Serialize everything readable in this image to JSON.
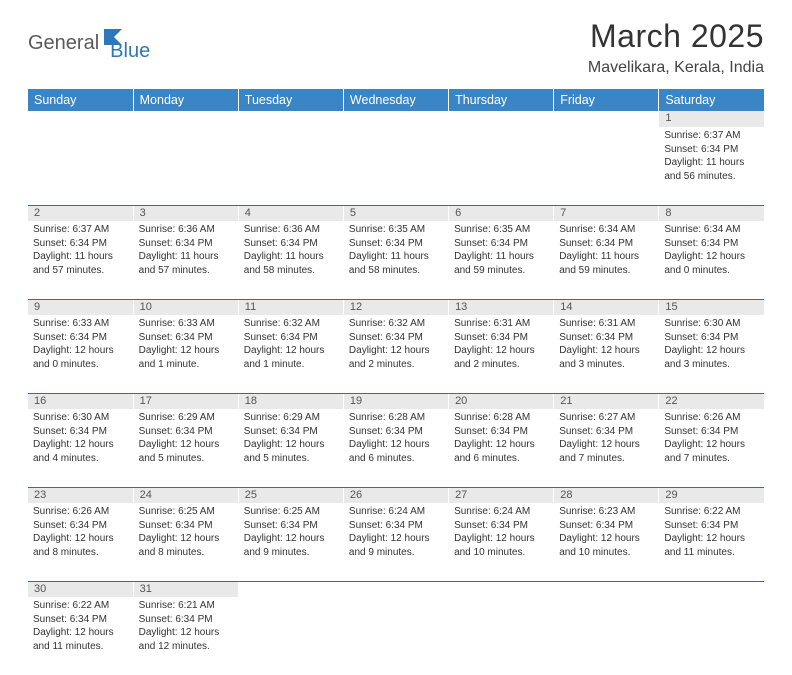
{
  "branding": {
    "logo_part1": "General",
    "logo_part2": "Blue",
    "logo_color1": "#5a5a5a",
    "logo_color2": "#2f78b8",
    "flag_color": "#2f78b8"
  },
  "header": {
    "title": "March 2025",
    "location": "Mavelikara, Kerala, India"
  },
  "theme": {
    "header_bg": "#3a85c6",
    "header_text": "#ffffff",
    "daynum_bg": "#e9e9e9",
    "daynum_text": "#555555",
    "cell_border": "#2f6fa8",
    "body_text": "#333333",
    "title_fontsize": 32,
    "location_fontsize": 16,
    "dayheader_fontsize": 12.5,
    "daynum_fontsize": 11,
    "detail_fontsize": 10
  },
  "day_headers": [
    "Sunday",
    "Monday",
    "Tuesday",
    "Wednesday",
    "Thursday",
    "Friday",
    "Saturday"
  ],
  "weeks": [
    [
      null,
      null,
      null,
      null,
      null,
      null,
      {
        "n": "1",
        "sunrise": "Sunrise: 6:37 AM",
        "sunset": "Sunset: 6:34 PM",
        "daylight": "Daylight: 11 hours and 56 minutes."
      }
    ],
    [
      {
        "n": "2",
        "sunrise": "Sunrise: 6:37 AM",
        "sunset": "Sunset: 6:34 PM",
        "daylight": "Daylight: 11 hours and 57 minutes."
      },
      {
        "n": "3",
        "sunrise": "Sunrise: 6:36 AM",
        "sunset": "Sunset: 6:34 PM",
        "daylight": "Daylight: 11 hours and 57 minutes."
      },
      {
        "n": "4",
        "sunrise": "Sunrise: 6:36 AM",
        "sunset": "Sunset: 6:34 PM",
        "daylight": "Daylight: 11 hours and 58 minutes."
      },
      {
        "n": "5",
        "sunrise": "Sunrise: 6:35 AM",
        "sunset": "Sunset: 6:34 PM",
        "daylight": "Daylight: 11 hours and 58 minutes."
      },
      {
        "n": "6",
        "sunrise": "Sunrise: 6:35 AM",
        "sunset": "Sunset: 6:34 PM",
        "daylight": "Daylight: 11 hours and 59 minutes."
      },
      {
        "n": "7",
        "sunrise": "Sunrise: 6:34 AM",
        "sunset": "Sunset: 6:34 PM",
        "daylight": "Daylight: 11 hours and 59 minutes."
      },
      {
        "n": "8",
        "sunrise": "Sunrise: 6:34 AM",
        "sunset": "Sunset: 6:34 PM",
        "daylight": "Daylight: 12 hours and 0 minutes."
      }
    ],
    [
      {
        "n": "9",
        "sunrise": "Sunrise: 6:33 AM",
        "sunset": "Sunset: 6:34 PM",
        "daylight": "Daylight: 12 hours and 0 minutes."
      },
      {
        "n": "10",
        "sunrise": "Sunrise: 6:33 AM",
        "sunset": "Sunset: 6:34 PM",
        "daylight": "Daylight: 12 hours and 1 minute."
      },
      {
        "n": "11",
        "sunrise": "Sunrise: 6:32 AM",
        "sunset": "Sunset: 6:34 PM",
        "daylight": "Daylight: 12 hours and 1 minute."
      },
      {
        "n": "12",
        "sunrise": "Sunrise: 6:32 AM",
        "sunset": "Sunset: 6:34 PM",
        "daylight": "Daylight: 12 hours and 2 minutes."
      },
      {
        "n": "13",
        "sunrise": "Sunrise: 6:31 AM",
        "sunset": "Sunset: 6:34 PM",
        "daylight": "Daylight: 12 hours and 2 minutes."
      },
      {
        "n": "14",
        "sunrise": "Sunrise: 6:31 AM",
        "sunset": "Sunset: 6:34 PM",
        "daylight": "Daylight: 12 hours and 3 minutes."
      },
      {
        "n": "15",
        "sunrise": "Sunrise: 6:30 AM",
        "sunset": "Sunset: 6:34 PM",
        "daylight": "Daylight: 12 hours and 3 minutes."
      }
    ],
    [
      {
        "n": "16",
        "sunrise": "Sunrise: 6:30 AM",
        "sunset": "Sunset: 6:34 PM",
        "daylight": "Daylight: 12 hours and 4 minutes."
      },
      {
        "n": "17",
        "sunrise": "Sunrise: 6:29 AM",
        "sunset": "Sunset: 6:34 PM",
        "daylight": "Daylight: 12 hours and 5 minutes."
      },
      {
        "n": "18",
        "sunrise": "Sunrise: 6:29 AM",
        "sunset": "Sunset: 6:34 PM",
        "daylight": "Daylight: 12 hours and 5 minutes."
      },
      {
        "n": "19",
        "sunrise": "Sunrise: 6:28 AM",
        "sunset": "Sunset: 6:34 PM",
        "daylight": "Daylight: 12 hours and 6 minutes."
      },
      {
        "n": "20",
        "sunrise": "Sunrise: 6:28 AM",
        "sunset": "Sunset: 6:34 PM",
        "daylight": "Daylight: 12 hours and 6 minutes."
      },
      {
        "n": "21",
        "sunrise": "Sunrise: 6:27 AM",
        "sunset": "Sunset: 6:34 PM",
        "daylight": "Daylight: 12 hours and 7 minutes."
      },
      {
        "n": "22",
        "sunrise": "Sunrise: 6:26 AM",
        "sunset": "Sunset: 6:34 PM",
        "daylight": "Daylight: 12 hours and 7 minutes."
      }
    ],
    [
      {
        "n": "23",
        "sunrise": "Sunrise: 6:26 AM",
        "sunset": "Sunset: 6:34 PM",
        "daylight": "Daylight: 12 hours and 8 minutes."
      },
      {
        "n": "24",
        "sunrise": "Sunrise: 6:25 AM",
        "sunset": "Sunset: 6:34 PM",
        "daylight": "Daylight: 12 hours and 8 minutes."
      },
      {
        "n": "25",
        "sunrise": "Sunrise: 6:25 AM",
        "sunset": "Sunset: 6:34 PM",
        "daylight": "Daylight: 12 hours and 9 minutes."
      },
      {
        "n": "26",
        "sunrise": "Sunrise: 6:24 AM",
        "sunset": "Sunset: 6:34 PM",
        "daylight": "Daylight: 12 hours and 9 minutes."
      },
      {
        "n": "27",
        "sunrise": "Sunrise: 6:24 AM",
        "sunset": "Sunset: 6:34 PM",
        "daylight": "Daylight: 12 hours and 10 minutes."
      },
      {
        "n": "28",
        "sunrise": "Sunrise: 6:23 AM",
        "sunset": "Sunset: 6:34 PM",
        "daylight": "Daylight: 12 hours and 10 minutes."
      },
      {
        "n": "29",
        "sunrise": "Sunrise: 6:22 AM",
        "sunset": "Sunset: 6:34 PM",
        "daylight": "Daylight: 12 hours and 11 minutes."
      }
    ],
    [
      {
        "n": "30",
        "sunrise": "Sunrise: 6:22 AM",
        "sunset": "Sunset: 6:34 PM",
        "daylight": "Daylight: 12 hours and 11 minutes."
      },
      {
        "n": "31",
        "sunrise": "Sunrise: 6:21 AM",
        "sunset": "Sunset: 6:34 PM",
        "daylight": "Daylight: 12 hours and 12 minutes."
      },
      null,
      null,
      null,
      null,
      null
    ]
  ]
}
